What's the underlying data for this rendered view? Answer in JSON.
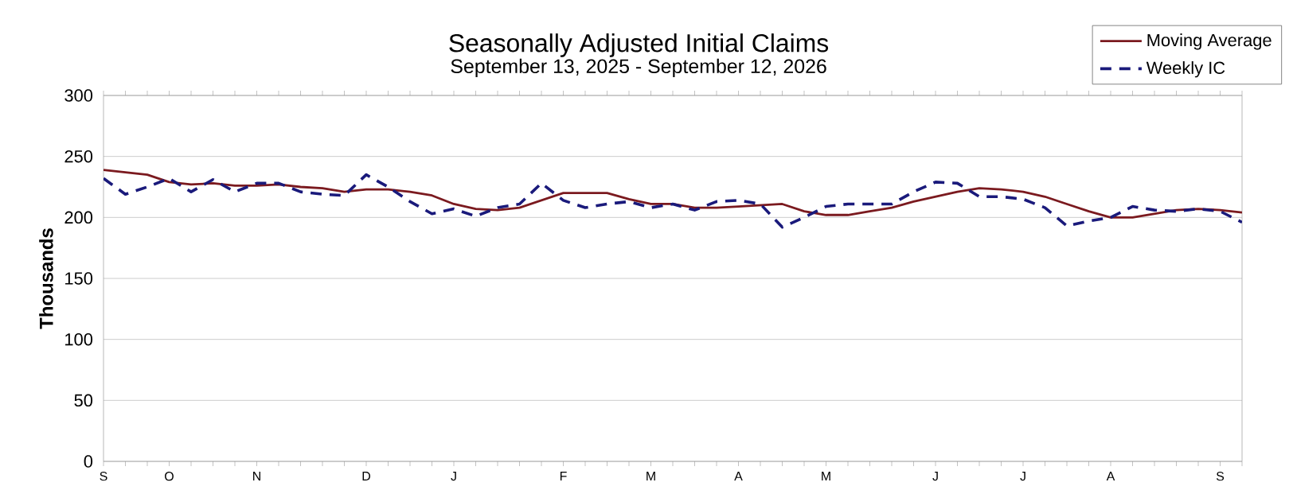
{
  "chart_data": {
    "type": "line",
    "title": "Seasonally Adjusted Initial Claims",
    "subtitle": "September 13, 2025 - September 12, 2026",
    "ylabel": "Thousands",
    "categories": [
      "S",
      null,
      null,
      "O",
      null,
      null,
      null,
      "N",
      null,
      null,
      null,
      null,
      "D",
      null,
      null,
      null,
      "J",
      null,
      null,
      null,
      null,
      "F",
      null,
      null,
      null,
      "M",
      null,
      null,
      null,
      "A",
      null,
      null,
      null,
      "M",
      null,
      null,
      null,
      null,
      "J",
      null,
      null,
      null,
      "J",
      null,
      null,
      null,
      "A",
      null,
      null,
      null,
      null,
      "S",
      null
    ],
    "series": [
      {
        "name": "Moving Average",
        "color": "#7b1a1f",
        "line_style": "solid",
        "values": [
          239,
          237,
          235,
          229,
          227,
          228,
          226,
          226,
          227,
          225,
          224,
          221,
          223,
          223,
          221,
          218,
          211,
          207,
          206,
          208,
          214,
          220,
          220,
          220,
          215,
          211,
          211,
          208,
          208,
          209,
          210,
          211,
          205,
          202,
          202,
          205,
          208,
          213,
          217,
          221,
          224,
          223,
          221,
          217,
          211,
          205,
          200,
          200,
          203,
          206,
          207,
          206,
          204
        ]
      },
      {
        "name": "Weekly IC",
        "color": "#1a1a7b",
        "line_style": "dashed",
        "values": [
          232,
          219,
          225,
          232,
          221,
          231,
          221,
          228,
          228,
          221,
          219,
          218,
          235,
          225,
          213,
          203,
          207,
          201,
          208,
          211,
          228,
          214,
          208,
          211,
          213,
          208,
          211,
          206,
          213,
          214,
          211,
          192,
          200,
          209,
          211,
          211,
          211,
          221,
          229,
          228,
          217,
          217,
          215,
          208,
          193,
          197,
          200,
          209,
          206,
          205,
          207,
          205,
          196
        ]
      }
    ],
    "ylim": [
      0,
      300
    ],
    "yticks": [
      0,
      50,
      100,
      150,
      200,
      250,
      300
    ],
    "grid": "y",
    "legend": "top right"
  }
}
